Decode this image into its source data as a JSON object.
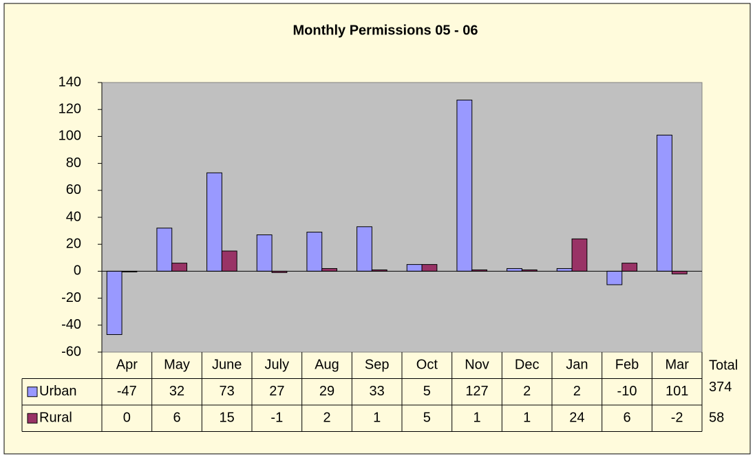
{
  "chart_data": {
    "type": "bar",
    "title": "Monthly Permissions 05 - 06",
    "categories": [
      "Apr",
      "May",
      "June",
      "July",
      "Aug",
      "Sep",
      "Oct",
      "Nov",
      "Dec",
      "Jan",
      "Feb",
      "Mar"
    ],
    "series": [
      {
        "name": "Urban",
        "color": "#9999ff",
        "values": [
          -47,
          32,
          73,
          27,
          29,
          33,
          5,
          127,
          2,
          2,
          -10,
          101
        ]
      },
      {
        "name": "Rural",
        "color": "#993366",
        "values": [
          0,
          6,
          15,
          -1,
          2,
          1,
          5,
          1,
          1,
          24,
          6,
          -2
        ]
      }
    ],
    "total_label": "Total",
    "totals": [
      374,
      58
    ],
    "ylim": [
      -60,
      140
    ],
    "yticks": [
      -60,
      -40,
      -20,
      0,
      20,
      40,
      60,
      80,
      100,
      120,
      140
    ]
  }
}
